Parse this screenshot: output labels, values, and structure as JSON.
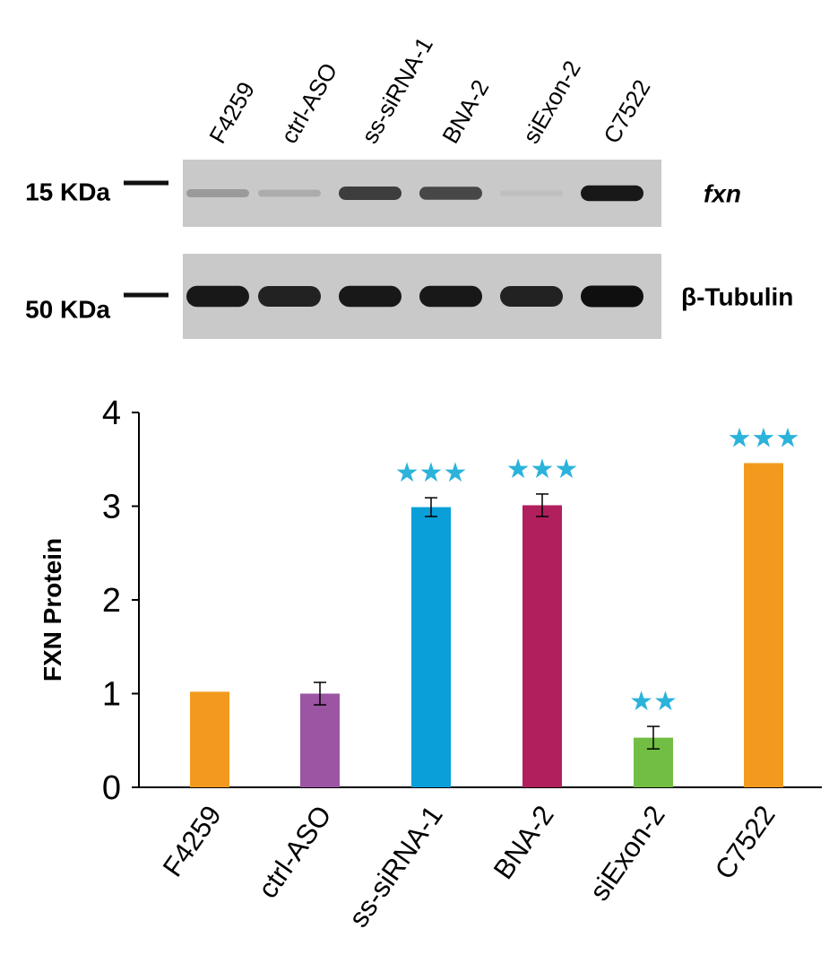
{
  "blot": {
    "lanes": [
      "F4259",
      "ctrl-ASO",
      "ss-siRNA-1",
      "BNA-2",
      "siExon-2",
      "C7522"
    ],
    "panels": [
      {
        "marker": "15 KDa",
        "target": "fxn",
        "italic": true,
        "band_intensity": [
          0.25,
          0.15,
          0.75,
          0.7,
          0.05,
          0.95
        ]
      },
      {
        "marker": "50 KDa",
        "target": "β-Tubulin",
        "italic": false,
        "band_intensity": [
          0.95,
          0.9,
          0.95,
          0.95,
          0.9,
          1.0
        ]
      }
    ]
  },
  "chart_data": {
    "type": "bar",
    "categories": [
      "F4259",
      "ctrl-ASO",
      "ss-siRNA-1",
      "BNA-2",
      "siExon-2",
      "C7522"
    ],
    "values": [
      1.02,
      1.0,
      2.99,
      3.01,
      0.53,
      3.46
    ],
    "errors": [
      0,
      0.12,
      0.1,
      0.12,
      0.12,
      0
    ],
    "colors": [
      "#F39A1E",
      "#9B55A3",
      "#0A9FD9",
      "#B11F5D",
      "#72BE44",
      "#F39A1E"
    ],
    "significance": [
      "",
      "",
      "★★★",
      "★★★",
      "★★",
      "★★★"
    ],
    "significance_color": "#2BB3DA",
    "ylabel": "FXN Protein",
    "ylim": [
      0,
      4
    ],
    "yticks": [
      "0",
      "1",
      "2",
      "3",
      "4"
    ],
    "grid": false
  }
}
